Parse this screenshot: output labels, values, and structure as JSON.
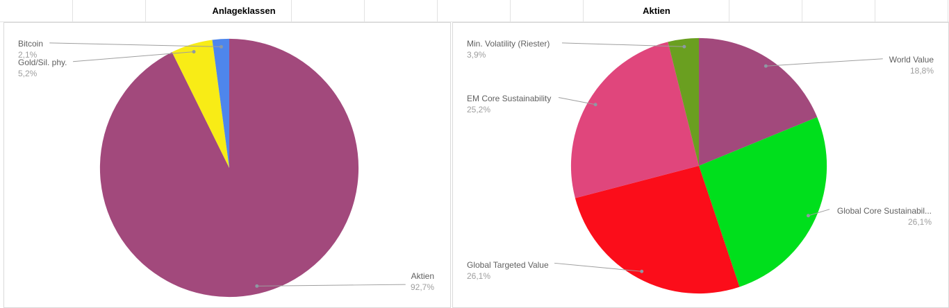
{
  "sheet": {
    "header_titles": [
      {
        "label": "Anlageklassen"
      },
      {
        "label": "Aktien"
      }
    ]
  },
  "chart_data": [
    {
      "type": "pie",
      "title": "Anlageklassen",
      "legend_position": "labeled",
      "slices": [
        {
          "label": "Aktien",
          "value": 92.7,
          "percent_label": "92,7%",
          "color": "#a2497c"
        },
        {
          "label": "Gold/Sil. phy.",
          "value": 5.2,
          "percent_label": "5,2%",
          "color": "#f8ec16"
        },
        {
          "label": "Bitcoin",
          "value": 2.1,
          "percent_label": "2,1%",
          "color": "#4e86ec"
        }
      ]
    },
    {
      "type": "pie",
      "title": "Aktien",
      "legend_position": "labeled",
      "slices": [
        {
          "label": "World Value",
          "value": 18.8,
          "percent_label": "18,8%",
          "color": "#a2497c"
        },
        {
          "label": "Global Core Sustainabil...",
          "value": 26.1,
          "percent_label": "26,1%",
          "color": "#00df1c"
        },
        {
          "label": "Global Targeted Value",
          "value": 26.1,
          "percent_label": "26,1%",
          "color": "#fb0d1a"
        },
        {
          "label": "EM Core Sustainability",
          "value": 25.2,
          "percent_label": "25,2%",
          "color": "#e0467c"
        },
        {
          "label": "Min. Volatility (Riester)",
          "value": 3.9,
          "percent_label": "3,9%",
          "color": "#6a9f20"
        }
      ]
    }
  ],
  "style": {
    "leader_line_color": "#9e9e9e",
    "leader_dot_color": "#8d99a3"
  }
}
